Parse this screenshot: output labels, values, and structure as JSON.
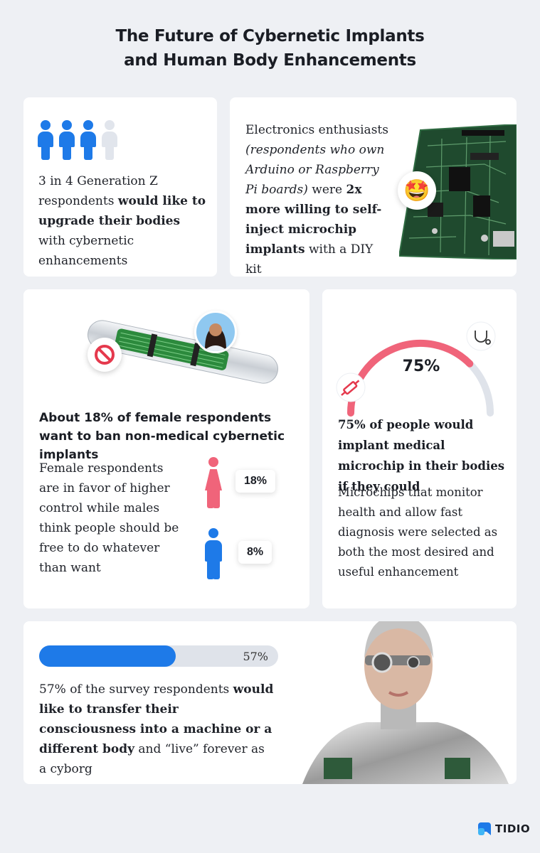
{
  "title": {
    "line1": "The Future of Cybernetic Implants",
    "line2": "and Human Body Enhancements"
  },
  "card_genz": {
    "figures_filled": 3,
    "figures_total": 4,
    "text_plain1": "3 in 4 Generation Z respondents ",
    "text_bold1": "would like to upgrade their bodies",
    "text_plain2": " with cybernetic enhancements"
  },
  "card_electronics": {
    "text_plain1": "Electronics enthusiasts ",
    "text_italic": "(respondents who own Arduino or Raspberry Pi boards)",
    "text_plain2": " were ",
    "text_bold": "2x more willing to self-inject microchip implants",
    "text_plain3": " with a DIY kit",
    "emoji": "🤩"
  },
  "card_female": {
    "heading": "About 18% of female respondents want to ban non-medical cybernetic implants",
    "body": "Female respondents are in favor of higher control while males think people should be free to do whatever than want",
    "female_value": "18%",
    "male_value": "8%"
  },
  "card_medical": {
    "gauge_value": "75%",
    "gauge_fraction": 0.75,
    "heading": "75% of people would implant medical microchip in their bodies if they could",
    "body": "Microchips that monitor health and allow fast diagnosis were selected as both the most desired and useful enhancement"
  },
  "card_consciousness": {
    "progress_label": "57%",
    "progress_fraction": 0.57,
    "text_plain1": "57% of the survey respondents ",
    "text_bold": "would like to transfer their consciousness into a machine or a different body",
    "text_plain2": " and “live” forever as a cyborg"
  },
  "logo": {
    "text": "TIDIO"
  },
  "colors": {
    "blue": "#1e7ae8",
    "pink": "#f0647a",
    "light_gray": "#dfe3ea",
    "background": "#eef0f4"
  }
}
